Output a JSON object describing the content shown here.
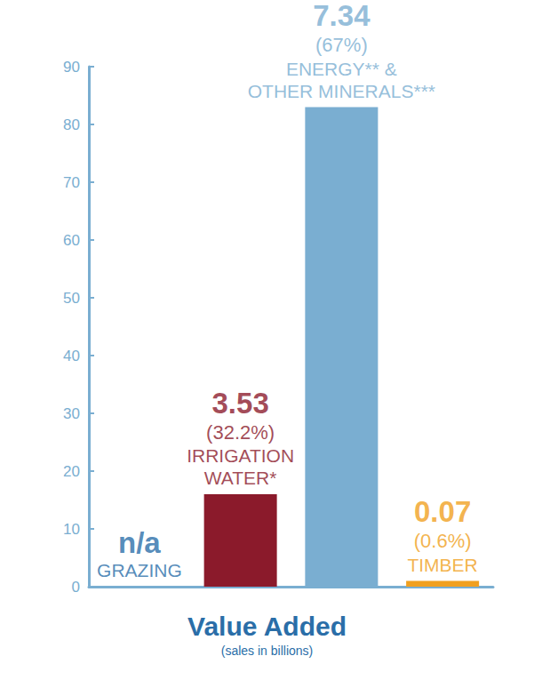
{
  "chart_data": {
    "type": "bar",
    "title": "Value Added",
    "subtitle": "(sales in billions)",
    "categories": [
      "GRAZING",
      "IRRIGATION\nWATER*",
      "ENERGY** &\nOTHER MINERALS***",
      "TIMBER"
    ],
    "values": [
      null,
      16,
      83,
      1
    ],
    "amount_labels": [
      "n/a",
      "3.53",
      "7.34",
      "0.07"
    ],
    "share_labels": [
      null,
      "(32.2%)",
      "(67%)",
      "(0.6%)"
    ],
    "colors": [
      "#2a6ea8",
      "#8b1a2b",
      "#7aaed1",
      "#f0a020"
    ],
    "ylim": [
      0,
      90
    ],
    "yticks": [
      0,
      10,
      20,
      30,
      40,
      50,
      60,
      70,
      80,
      90
    ],
    "grid": false,
    "tick_labels": "y"
  }
}
